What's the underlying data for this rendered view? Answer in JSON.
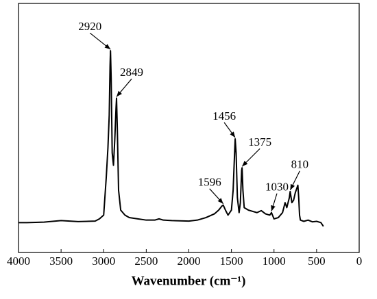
{
  "chart_data": {
    "type": "line",
    "xlabel": "Wavenumber (cm⁻¹)",
    "color": "#000000",
    "xlim": [
      4000,
      0
    ],
    "xticks": [
      4000,
      3500,
      3000,
      2500,
      2000,
      1500,
      1000,
      500,
      0
    ],
    "ylim": [
      0,
      100
    ],
    "x": [
      4000,
      3900,
      3700,
      3500,
      3300,
      3100,
      3050,
      3000,
      2970,
      2950,
      2935,
      2925,
      2920,
      2912,
      2900,
      2885,
      2870,
      2855,
      2849,
      2840,
      2825,
      2800,
      2750,
      2700,
      2600,
      2500,
      2400,
      2350,
      2300,
      2200,
      2000,
      1900,
      1800,
      1700,
      1650,
      1610,
      1596,
      1570,
      1540,
      1500,
      1480,
      1465,
      1456,
      1445,
      1430,
      1410,
      1395,
      1380,
      1375,
      1365,
      1350,
      1300,
      1250,
      1200,
      1150,
      1100,
      1050,
      1030,
      1000,
      950,
      900,
      870,
      850,
      820,
      810,
      790,
      770,
      750,
      730,
      720,
      710,
      700,
      690,
      650,
      600,
      550,
      500,
      450,
      430,
      420
    ],
    "values": [
      12.0,
      12.0,
      12.2,
      12.8,
      12.4,
      12.6,
      13.5,
      15,
      30,
      42,
      55,
      75,
      81,
      70,
      40,
      35,
      45,
      58,
      62,
      50,
      25,
      17,
      15,
      14,
      13.5,
      13,
      13,
      13.5,
      13,
      12.8,
      12.6,
      13,
      14,
      15.5,
      17,
      18.7,
      19,
      17,
      15,
      17,
      25,
      38,
      45.6,
      40,
      22,
      16,
      20,
      33,
      34,
      25,
      18,
      17,
      16.5,
      16,
      16.8,
      15.5,
      15,
      16,
      13.5,
      14,
      16,
      20,
      18,
      22,
      24.5,
      20,
      21,
      24,
      26,
      27,
      22,
      15,
      13,
      12.5,
      13,
      12.3,
      12.5,
      12,
      11,
      10.5
    ],
    "annotations": [
      {
        "text": "2920",
        "x": 2920
      },
      {
        "text": "2849",
        "x": 2849
      },
      {
        "text": "1456",
        "x": 1456
      },
      {
        "text": "1375",
        "x": 1375
      },
      {
        "text": "1596",
        "x": 1596
      },
      {
        "text": "1030",
        "x": 1030
      },
      {
        "text": "810",
        "x": 810
      }
    ]
  }
}
